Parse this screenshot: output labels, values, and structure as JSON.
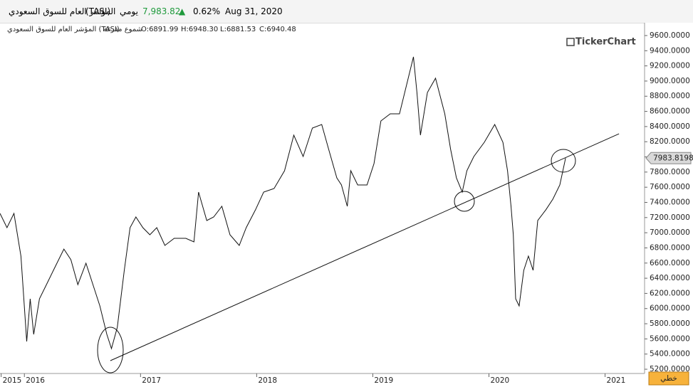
{
  "header": {
    "name": "المؤشر العام للسوق السعودي",
    "symbol": "(TASI)",
    "period": "يومي",
    "price": "7,983.82",
    "arrow": "▲",
    "change": "0.62%",
    "date": "Aug 31, 2020",
    "legend_name": "المؤشر العام للسوق السعودي (TASI)",
    "legend_style": "شموع مفرغة",
    "open": "O:6891.99",
    "high": "H:6948.30",
    "low": "L:6881.53",
    "close": "C:6940.48",
    "logo": "TickerChart",
    "chart_style_button": "خطي"
  },
  "chart_data": {
    "type": "line",
    "x": [
      2015.79,
      2015.85,
      2015.91,
      2015.97,
      2016.02,
      2016.05,
      2016.08,
      2016.13,
      2016.19,
      2016.25,
      2016.34,
      2016.4,
      2016.46,
      2016.53,
      2016.59,
      2016.65,
      2016.71,
      2016.75,
      2016.8,
      2016.86,
      2016.91,
      2016.96,
      2017.02,
      2017.08,
      2017.14,
      2017.21,
      2017.29,
      2017.39,
      2017.46,
      2017.5,
      2017.57,
      2017.63,
      2017.7,
      2017.77,
      2017.85,
      2017.91,
      2017.99,
      2018.06,
      2018.15,
      2018.24,
      2018.32,
      2018.4,
      2018.48,
      2018.56,
      2018.62,
      2018.69,
      2018.73,
      2018.78,
      2018.81,
      2018.87,
      2018.95,
      2019.01,
      2019.07,
      2019.15,
      2019.23,
      2019.29,
      2019.35,
      2019.38,
      2019.41,
      2019.47,
      2019.54,
      2019.62,
      2019.67,
      2019.72,
      2019.77,
      2019.81,
      2019.87,
      2019.96,
      2020.05,
      2020.12,
      2020.16,
      2020.19,
      2020.21,
      2020.23,
      2020.26,
      2020.3,
      2020.34,
      2020.38,
      2020.42,
      2020.49,
      2020.55,
      2020.61,
      2020.66
    ],
    "series": [
      {
        "name": "TASI",
        "color": "#111111",
        "values": [
          7255,
          7067,
          7255,
          6692,
          5566,
          6129,
          5660,
          6129,
          6316,
          6504,
          6785,
          6645,
          6316,
          6598,
          6316,
          6035,
          5660,
          5472,
          5753,
          6504,
          7067,
          7208,
          7067,
          6973,
          7067,
          6832,
          6926,
          6926,
          6879,
          7536,
          7161,
          7208,
          7348,
          6973,
          6832,
          7067,
          7302,
          7536,
          7583,
          7817,
          8286,
          8005,
          8380,
          8427,
          8099,
          7724,
          7630,
          7348,
          7817,
          7630,
          7630,
          7911,
          8474,
          8568,
          8568,
          8943,
          9319,
          8849,
          8286,
          8849,
          9037,
          8568,
          8099,
          7724,
          7536,
          7817,
          8005,
          8193,
          8427,
          8193,
          7817,
          7348,
          6973,
          6129,
          6035,
          6504,
          6692,
          6504,
          7161,
          7302,
          7442,
          7630,
          7983.8198
        ]
      }
    ],
    "trendline": {
      "x": [
        2016.74,
        2021.12
      ],
      "y": [
        5313,
        8305
      ]
    },
    "xlim": [
      2015.79,
      2021.34
    ],
    "xticks": [
      {
        "value": 2015.8,
        "label": "2015"
      },
      2016,
      2017,
      2018,
      2019,
      2020,
      2021
    ],
    "ylim": [
      5144,
      9731
    ],
    "yticks": [
      {
        "value": 5200,
        "label": "5200.0000"
      },
      {
        "value": 5400,
        "label": "5400.0000"
      },
      {
        "value": 5600,
        "label": "5600.0000"
      },
      {
        "value": 5800,
        "label": "5800.0000"
      },
      {
        "value": 6000,
        "label": "6000.0000"
      },
      {
        "value": 6200,
        "label": "6200.0000"
      },
      {
        "value": 6400,
        "label": "6400.0000"
      },
      {
        "value": 6600,
        "label": "6600.0000"
      },
      {
        "value": 6800,
        "label": "6800.0000"
      },
      {
        "value": 7000,
        "label": "7000.0000"
      },
      {
        "value": 7200,
        "label": "7200.0000"
      },
      {
        "value": 7400,
        "label": "7400.0000"
      },
      {
        "value": 7600,
        "label": "7600.0000"
      },
      {
        "value": 7800,
        "label": "7800.0000"
      },
      {
        "value": 8000,
        "label": "8000.0000"
      },
      {
        "value": 8200,
        "label": "8200.0000"
      },
      {
        "value": 8400,
        "label": "8400.0000"
      },
      {
        "value": 8600,
        "label": "8600.0000"
      },
      {
        "value": 8800,
        "label": "8800.0000"
      },
      {
        "value": 9000,
        "label": "9000.0000"
      },
      {
        "value": 9200,
        "label": "9200.0000"
      },
      {
        "value": 9400,
        "label": "9400.0000"
      },
      {
        "value": 9600,
        "label": "9600.0000"
      }
    ]
  }
}
